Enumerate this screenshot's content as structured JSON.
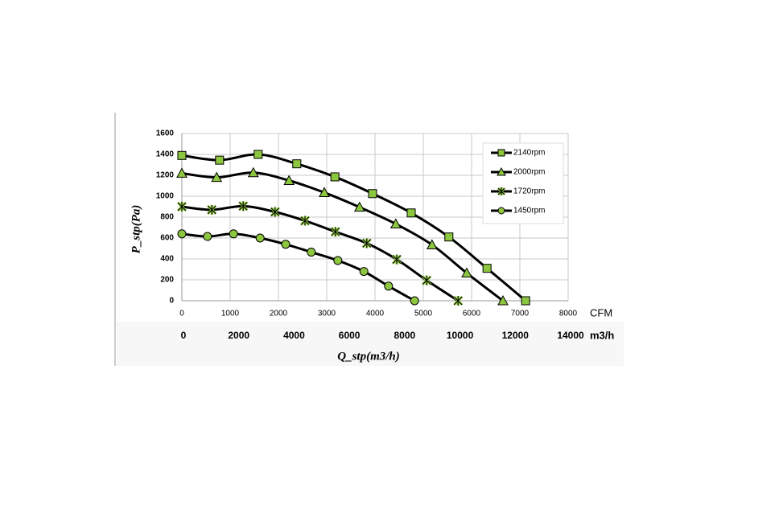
{
  "chart_data": {
    "type": "line",
    "xlabel": "Q_stp(m3/h)",
    "ylabel": "P_stp(Pa)",
    "xunit": "CFM",
    "x2unit": "m3/h",
    "xlim": [
      0,
      8000
    ],
    "xticks": [
      0,
      1000,
      2000,
      3000,
      4000,
      5000,
      6000,
      7000,
      8000
    ],
    "x2lim": [
      0,
      14000
    ],
    "x2ticks": [
      0,
      2000,
      4000,
      6000,
      8000,
      10000,
      12000,
      14000
    ],
    "ylim": [
      0,
      1600
    ],
    "yticks": [
      0,
      200,
      400,
      600,
      800,
      1000,
      1200,
      1400,
      1600
    ],
    "grid": true,
    "legend": "upper right",
    "line_color": "#000000",
    "series": [
      {
        "name": "2140rpm",
        "color": "#8dc63f",
        "marker": "square",
        "x": [
          0,
          780,
          1580,
          2380,
          3170,
          3950,
          4750,
          5530,
          6320,
          7120
        ],
        "values": [
          1390,
          1345,
          1400,
          1310,
          1185,
          1025,
          840,
          610,
          310,
          0
        ]
      },
      {
        "name": "2000rpm",
        "color": "#8dc63f",
        "marker": "triangle",
        "x": [
          0,
          720,
          1480,
          2220,
          2950,
          3680,
          4430,
          5180,
          5900,
          6650
        ],
        "values": [
          1220,
          1180,
          1225,
          1150,
          1035,
          895,
          735,
          535,
          265,
          0
        ]
      },
      {
        "name": "1720rpm",
        "color": "#8dc63f",
        "marker": "asterisk",
        "x": [
          0,
          620,
          1270,
          1930,
          2550,
          3180,
          3830,
          4450,
          5070,
          5720
        ],
        "values": [
          900,
          870,
          905,
          850,
          765,
          660,
          550,
          395,
          195,
          0
        ]
      },
      {
        "name": "1450rpm",
        "color": "#8dc63f",
        "marker": "circle",
        "x": [
          0,
          530,
          1070,
          1620,
          2150,
          2680,
          3230,
          3770,
          4280,
          4820
        ],
        "values": [
          640,
          615,
          640,
          600,
          540,
          465,
          385,
          280,
          140,
          0
        ]
      }
    ]
  }
}
